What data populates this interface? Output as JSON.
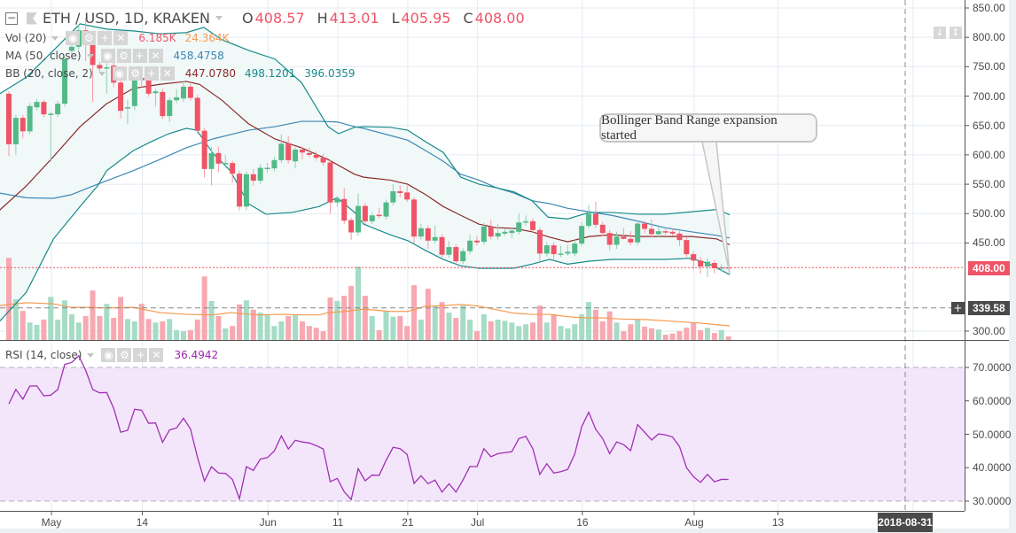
{
  "header": {
    "symbol": "ETH / USD, 1D, KRAKEN",
    "o_label": "O",
    "o": "408.57",
    "h_label": "H",
    "h": "413.01",
    "l_label": "L",
    "l": "405.95",
    "c_label": "C",
    "c": "408.00"
  },
  "indicators": {
    "vol": {
      "label": "Vol (20)",
      "value": "6.185K",
      "ma": "24.364K"
    },
    "ma": {
      "label": "MA (50, close)",
      "value": "458.4758"
    },
    "bb": {
      "label": "BB (20, close, 2)",
      "basis": "447.0780",
      "upper": "498.1201",
      "lower": "396.0359"
    },
    "rsi": {
      "label": "RSI (14, close)",
      "value": "36.4942"
    }
  },
  "icons": {
    "eye": "◉",
    "gear": "⚙",
    "plus": "+",
    "close": "✕",
    "collapse": "−",
    "down": "↓",
    "updown": "↕"
  },
  "annotation": "Bollinger Band Range expansion started",
  "price_badge": "408.00",
  "crosshair_badge": "339.58",
  "crosshair_plus": "+",
  "time_badge": "2018-08-31",
  "colors": {
    "up": "#53b987",
    "down": "#ef5466",
    "vol_up": "#a6dcc6",
    "vol_down": "#f7a8b0",
    "vol_ma": "#f79a4f",
    "ma": "#3c88b5",
    "bb_basis": "#8b2a2a",
    "bb_band": "#178a8a",
    "bb_fill": "#f1f8f8",
    "rsi": "#a02fb5",
    "rsi_fill": "#f4e6fa"
  },
  "chart_data": {
    "type": "candlestick",
    "price_axis": {
      "ticks": [
        "850.00",
        "800.00",
        "750.00",
        "700.00",
        "650.00",
        "600.00",
        "550.00",
        "500.00",
        "450.00",
        "300.00"
      ],
      "range": [
        300,
        850
      ],
      "last_price": 408.0,
      "crosshair_price": 339.58
    },
    "time_axis": {
      "labels": [
        {
          "text": "May",
          "day": 0
        },
        {
          "text": "14",
          "day": 13
        },
        {
          "text": "Jun",
          "day": 31
        },
        {
          "text": "11",
          "day": 41
        },
        {
          "text": "21",
          "day": 51
        },
        {
          "text": "Jul",
          "day": 61
        },
        {
          "text": "16",
          "day": 76
        },
        {
          "text": "Aug",
          "day": 92
        },
        {
          "text": "13",
          "day": 104
        }
      ],
      "crosshair_day": 122
    },
    "candles_ohlc": [
      [
        704,
        708,
        598,
        618
      ],
      [
        618,
        668,
        600,
        663
      ],
      [
        663,
        668,
        628,
        640
      ],
      [
        640,
        688,
        636,
        683
      ],
      [
        681,
        695,
        676,
        690
      ],
      [
        690,
        694,
        664,
        669
      ],
      [
        670,
        674,
        588,
        670
      ],
      [
        669,
        692,
        664,
        687
      ],
      [
        687,
        768,
        682,
        763
      ],
      [
        777,
        790,
        770,
        784
      ],
      [
        784,
        822,
        779,
        812
      ],
      [
        812,
        833,
        760,
        790
      ],
      [
        790,
        795,
        690,
        753
      ],
      [
        753,
        758,
        742,
        747
      ],
      [
        749,
        756,
        704,
        749
      ],
      [
        752,
        757,
        715,
        723
      ],
      [
        723,
        728,
        662,
        675
      ],
      [
        680,
        694,
        652,
        681
      ],
      [
        683,
        736,
        676,
        731
      ],
      [
        731,
        738,
        715,
        727
      ],
      [
        727,
        732,
        699,
        704
      ],
      [
        705,
        712,
        683,
        708
      ],
      [
        707,
        712,
        661,
        666
      ],
      [
        666,
        698,
        656,
        693
      ],
      [
        693,
        712,
        688,
        698
      ],
      [
        696,
        726,
        690,
        716
      ],
      [
        716,
        721,
        692,
        697
      ],
      [
        697,
        702,
        636,
        641
      ],
      [
        641,
        646,
        561,
        576
      ],
      [
        576,
        614,
        548,
        603
      ],
      [
        603,
        614,
        570,
        585
      ],
      [
        586,
        600,
        578,
        586
      ],
      [
        586,
        590,
        553,
        568
      ],
      [
        568,
        573,
        505,
        512
      ],
      [
        512,
        572,
        506,
        567
      ],
      [
        567,
        576,
        548,
        556
      ],
      [
        556,
        584,
        551,
        578
      ],
      [
        578,
        586,
        570,
        578
      ],
      [
        577,
        597,
        572,
        591
      ],
      [
        591,
        635,
        586,
        619
      ],
      [
        619,
        632,
        585,
        591
      ],
      [
        589,
        613,
        577,
        609
      ],
      [
        609,
        614,
        592,
        604
      ],
      [
        603,
        612,
        596,
        600
      ],
      [
        600,
        606,
        590,
        595
      ],
      [
        595,
        602,
        582,
        587
      ],
      [
        587,
        592,
        500,
        519
      ],
      [
        519,
        530,
        512,
        525
      ],
      [
        525,
        544,
        482,
        488
      ],
      [
        489,
        493,
        455,
        468
      ],
      [
        468,
        534,
        462,
        513
      ],
      [
        513,
        518,
        482,
        487
      ],
      [
        487,
        502,
        482,
        497
      ],
      [
        498,
        510,
        492,
        496
      ],
      [
        495,
        524,
        490,
        519
      ],
      [
        519,
        550,
        514,
        538
      ],
      [
        538,
        548,
        528,
        535
      ],
      [
        536,
        548,
        520,
        524
      ],
      [
        524,
        528,
        450,
        461
      ],
      [
        461,
        483,
        456,
        475
      ],
      [
        475,
        480,
        440,
        454
      ],
      [
        454,
        480,
        449,
        460
      ],
      [
        460,
        465,
        425,
        430
      ],
      [
        430,
        453,
        425,
        443
      ],
      [
        443,
        448,
        414,
        419
      ],
      [
        419,
        441,
        414,
        436
      ],
      [
        436,
        464,
        431,
        454
      ],
      [
        454,
        462,
        446,
        451
      ],
      [
        452,
        484,
        447,
        478
      ],
      [
        478,
        490,
        456,
        461
      ],
      [
        461,
        482,
        456,
        467
      ],
      [
        466,
        475,
        462,
        469
      ],
      [
        467,
        476,
        458,
        471
      ],
      [
        469,
        500,
        464,
        485
      ],
      [
        485,
        497,
        480,
        487
      ],
      [
        487,
        492,
        467,
        472
      ],
      [
        472,
        477,
        420,
        432
      ],
      [
        432,
        452,
        427,
        446
      ],
      [
        446,
        451,
        420,
        431
      ],
      [
        432,
        445,
        426,
        432
      ],
      [
        432,
        447,
        428,
        435
      ],
      [
        432,
        455,
        428,
        449
      ],
      [
        449,
        486,
        444,
        479
      ],
      [
        479,
        515,
        474,
        500
      ],
      [
        500,
        520,
        476,
        481
      ],
      [
        481,
        486,
        462,
        467
      ],
      [
        467,
        472,
        438,
        447
      ],
      [
        447,
        469,
        440,
        461
      ],
      [
        461,
        475,
        456,
        457
      ],
      [
        457,
        470,
        446,
        451
      ],
      [
        451,
        488,
        446,
        483
      ],
      [
        483,
        488,
        466,
        474
      ],
      [
        474,
        490,
        460,
        465
      ],
      [
        465,
        478,
        460,
        470
      ],
      [
        470,
        476,
        464,
        469
      ],
      [
        469,
        474,
        462,
        466
      ],
      [
        466,
        470,
        445,
        455
      ],
      [
        455,
        460,
        426,
        431
      ],
      [
        431,
        436,
        405,
        420
      ],
      [
        420,
        426,
        398,
        410
      ],
      [
        410,
        424,
        392,
        418
      ],
      [
        416,
        421,
        398,
        407
      ],
      [
        407,
        414,
        402,
        408.57
      ],
      [
        408.57,
        413.01,
        405.95,
        408
      ]
    ],
    "volume_k": [
      141,
      70,
      50,
      30,
      26,
      35,
      74,
      35,
      68,
      44,
      30,
      41,
      85,
      41,
      62,
      38,
      74,
      36,
      32,
      62,
      36,
      30,
      32,
      36,
      17,
      15,
      17,
      35,
      109,
      67,
      41,
      20,
      24,
      61,
      68,
      52,
      47,
      44,
      24,
      32,
      41,
      44,
      32,
      24,
      21,
      15,
      73,
      67,
      76,
      93,
      126,
      76,
      41,
      17,
      49,
      40,
      41,
      24,
      94,
      35,
      88,
      59,
      65,
      47,
      38,
      59,
      35,
      15,
      44,
      32,
      35,
      33,
      30,
      24,
      27,
      30,
      59,
      30,
      44,
      24,
      20,
      27,
      44,
      65,
      52,
      32,
      49,
      30,
      15,
      27,
      36,
      23,
      20,
      18,
      9,
      11,
      15,
      21,
      30,
      17,
      21,
      12,
      17,
      6.185
    ],
    "volume_ma_k": [
      [
        -7.4,
        59
      ],
      [
        -3.6,
        64
      ],
      [
        0.3,
        62
      ],
      [
        2.8,
        56
      ],
      [
        5.3,
        56
      ],
      [
        7.9,
        55
      ],
      [
        11.7,
        56
      ],
      [
        15.5,
        47
      ],
      [
        19.3,
        44
      ],
      [
        23.1,
        43
      ],
      [
        25.6,
        47
      ],
      [
        29.4,
        43
      ],
      [
        33.2,
        44
      ],
      [
        35.8,
        43
      ],
      [
        38.3,
        43
      ],
      [
        39.6,
        47
      ],
      [
        42.1,
        49
      ],
      [
        44.7,
        53
      ],
      [
        48.5,
        49
      ],
      [
        51,
        49
      ],
      [
        53.6,
        58
      ],
      [
        56.1,
        59
      ],
      [
        58.6,
        61
      ],
      [
        61.2,
        58
      ],
      [
        63.7,
        52
      ],
      [
        66.2,
        46
      ],
      [
        68.8,
        44
      ],
      [
        71.3,
        44
      ],
      [
        73.9,
        40
      ],
      [
        76.4,
        38
      ],
      [
        78.9,
        38
      ],
      [
        81.5,
        36
      ],
      [
        85.3,
        35
      ],
      [
        89.1,
        32
      ],
      [
        92.9,
        29
      ],
      [
        95.4,
        26
      ],
      [
        97.1,
        24.364
      ]
    ],
    "ma50": [
      [
        -7.4,
        535
      ],
      [
        -3.6,
        527
      ],
      [
        0.3,
        526
      ],
      [
        2.8,
        532
      ],
      [
        6.6,
        550
      ],
      [
        11.7,
        573
      ],
      [
        15.5,
        592
      ],
      [
        19.3,
        612
      ],
      [
        23.1,
        627
      ],
      [
        28.2,
        642
      ],
      [
        32,
        648
      ],
      [
        35.8,
        657
      ],
      [
        38.3,
        657
      ],
      [
        40.9,
        656
      ],
      [
        43.4,
        648
      ],
      [
        44.7,
        645
      ],
      [
        48.5,
        633
      ],
      [
        51,
        625
      ],
      [
        53.6,
        607
      ],
      [
        56.1,
        589
      ],
      [
        58.6,
        567
      ],
      [
        61.2,
        557
      ],
      [
        63.7,
        544
      ],
      [
        66.2,
        535
      ],
      [
        68.8,
        522
      ],
      [
        71.3,
        517
      ],
      [
        73.9,
        509
      ],
      [
        77,
        503
      ],
      [
        80.2,
        497
      ],
      [
        84,
        487
      ],
      [
        87.8,
        476
      ],
      [
        91.6,
        469
      ],
      [
        95.2,
        463
      ],
      [
        97.1,
        458.48
      ]
    ],
    "bb_upper": [
      [
        -7.4,
        704
      ],
      [
        -3.6,
        732
      ],
      [
        0.3,
        778
      ],
      [
        4.1,
        823
      ],
      [
        7.9,
        814
      ],
      [
        11.7,
        811
      ],
      [
        15.5,
        806
      ],
      [
        19.3,
        808
      ],
      [
        21.8,
        817
      ],
      [
        24.4,
        796
      ],
      [
        28.2,
        778
      ],
      [
        32,
        763
      ],
      [
        35.8,
        723
      ],
      [
        39.6,
        648
      ],
      [
        41.1,
        636
      ],
      [
        43.4,
        647
      ],
      [
        44.7,
        648
      ],
      [
        48.5,
        647
      ],
      [
        51,
        642
      ],
      [
        53.6,
        622
      ],
      [
        56.1,
        604
      ],
      [
        58.6,
        562
      ],
      [
        61.2,
        550
      ],
      [
        63.7,
        544
      ],
      [
        66.2,
        537
      ],
      [
        68.8,
        522
      ],
      [
        71.1,
        494
      ],
      [
        73.9,
        491
      ],
      [
        77,
        502
      ],
      [
        80.2,
        502
      ],
      [
        84,
        499
      ],
      [
        87.8,
        499
      ],
      [
        91.6,
        503
      ],
      [
        95.2,
        507
      ],
      [
        97.1,
        498.12
      ]
    ],
    "bb_basis": [
      [
        -7.4,
        506
      ],
      [
        -3.6,
        547
      ],
      [
        0.3,
        597
      ],
      [
        4.1,
        648
      ],
      [
        7.9,
        687
      ],
      [
        11.7,
        713
      ],
      [
        15.5,
        720
      ],
      [
        19.3,
        725
      ],
      [
        21.2,
        720
      ],
      [
        24.4,
        693
      ],
      [
        28.2,
        653
      ],
      [
        32,
        627
      ],
      [
        35.8,
        612
      ],
      [
        39.6,
        592
      ],
      [
        43.4,
        567
      ],
      [
        44.7,
        562
      ],
      [
        48.5,
        557
      ],
      [
        51,
        550
      ],
      [
        53.6,
        532
      ],
      [
        56.1,
        512
      ],
      [
        58.6,
        497
      ],
      [
        61.2,
        482
      ],
      [
        63.7,
        476
      ],
      [
        66.2,
        475
      ],
      [
        68.8,
        469
      ],
      [
        71.3,
        460
      ],
      [
        73.9,
        452
      ],
      [
        77,
        461
      ],
      [
        80.2,
        464
      ],
      [
        84,
        461
      ],
      [
        87.8,
        461
      ],
      [
        91.6,
        461
      ],
      [
        95.2,
        457
      ],
      [
        97.1,
        447.08
      ]
    ],
    "bb_lower": [
      [
        -7.4,
        317
      ],
      [
        -3.6,
        366
      ],
      [
        0.3,
        457
      ],
      [
        4.1,
        512
      ],
      [
        6.6,
        547
      ],
      [
        7.9,
        573
      ],
      [
        11.7,
        607
      ],
      [
        14.2,
        622
      ],
      [
        16.8,
        636
      ],
      [
        19.3,
        645
      ],
      [
        20.8,
        642
      ],
      [
        23.1,
        603
      ],
      [
        25.6,
        573
      ],
      [
        28.2,
        517
      ],
      [
        30.7,
        499
      ],
      [
        34.5,
        502
      ],
      [
        38.3,
        512
      ],
      [
        40.9,
        527
      ],
      [
        43.4,
        502
      ],
      [
        44.7,
        482
      ],
      [
        48.5,
        464
      ],
      [
        51,
        454
      ],
      [
        53.6,
        437
      ],
      [
        56.1,
        422
      ],
      [
        58.6,
        411
      ],
      [
        61.2,
        407
      ],
      [
        63.7,
        407
      ],
      [
        66.2,
        407
      ],
      [
        68.8,
        414
      ],
      [
        71.3,
        422
      ],
      [
        73.9,
        414
      ],
      [
        77,
        419
      ],
      [
        80.2,
        422
      ],
      [
        84,
        422
      ],
      [
        87.8,
        422
      ],
      [
        91.6,
        424
      ],
      [
        94.2,
        414
      ],
      [
        97.1,
        396.04
      ]
    ],
    "rsi": {
      "ticks": [
        "70.0000",
        "60.0000",
        "50.0000",
        "40.0000",
        "30.0000"
      ],
      "upper_band": 70,
      "lower_band": 30,
      "values": [
        59.1,
        63.4,
        60.5,
        64.4,
        64.5,
        61.5,
        61.7,
        63.4,
        70.9,
        71.5,
        73.5,
        69.1,
        63.4,
        62.4,
        62.5,
        57.8,
        50.6,
        51.2,
        57.5,
        57.2,
        53.3,
        53.4,
        47.6,
        51.3,
        51.9,
        54.8,
        51.6,
        43.1,
        36.0,
        40.3,
        38.4,
        38.3,
        36.5,
        30.7,
        40.3,
        39.2,
        42.6,
        43.0,
        45.0,
        49.5,
        45.6,
        48.2,
        47.7,
        47.4,
        46.6,
        45.6,
        35.8,
        36.8,
        32.8,
        30.5,
        39.7,
        36.1,
        37.8,
        37.7,
        42.2,
        46.1,
        45.7,
        44.0,
        35.3,
        37.6,
        35.2,
        36.3,
        32.7,
        35.2,
        32.7,
        36.3,
        40.4,
        40.3,
        45.7,
        43.3,
        44.2,
        44.5,
        44.8,
        48.7,
        49.4,
        45.7,
        38.0,
        41.2,
        38.4,
        38.8,
        39.5,
        44.1,
        52.3,
        56.6,
        51.5,
        48.7,
        44.2,
        47.7,
        46.9,
        45.1,
        52.9,
        50.6,
        48.3,
        50.1,
        49.8,
        49.2,
        46.3,
        40.0,
        37.3,
        35.6,
        38.0,
        35.8,
        36.5,
        36.49
      ]
    }
  }
}
